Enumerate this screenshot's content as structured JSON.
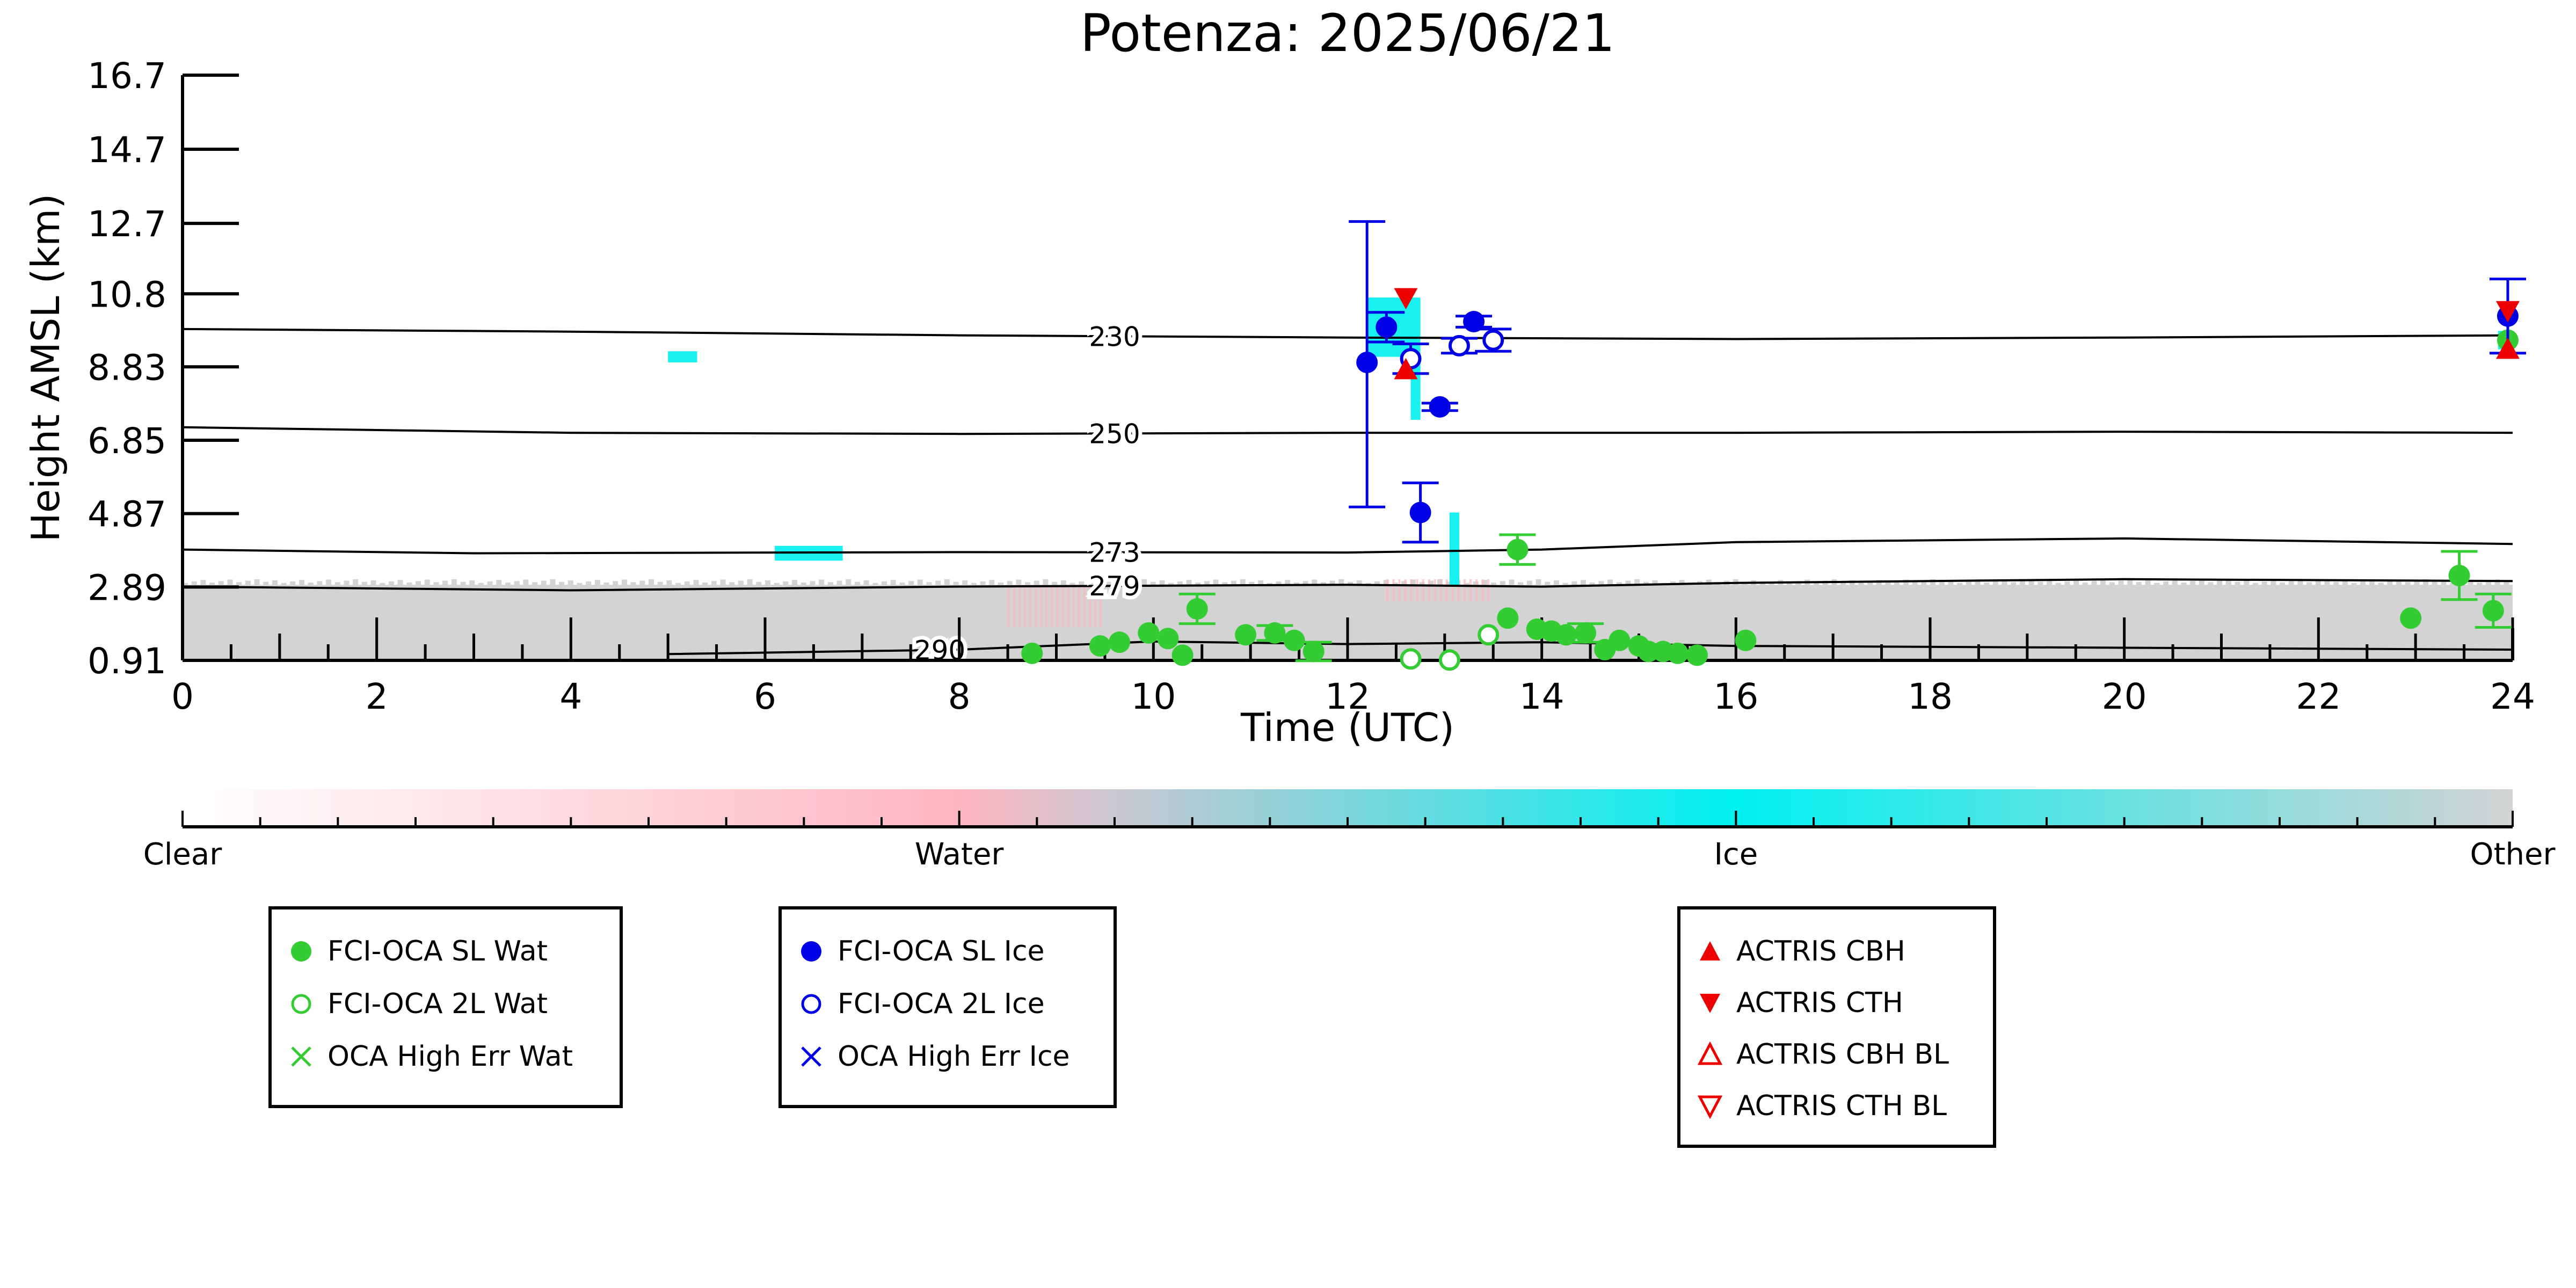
{
  "chart_data": {
    "type": "scatter",
    "title": "Potenza: 2025/06/21",
    "xlabel": "Time (UTC)",
    "ylabel": "Height AMSL (km)",
    "xlim": [
      0,
      24
    ],
    "ylim": [
      0.91,
      16.7
    ],
    "x_ticks": [
      "0",
      "2",
      "4",
      "6",
      "8",
      "10",
      "12",
      "14",
      "16",
      "18",
      "20",
      "22",
      "24"
    ],
    "y_ticks": [
      "0.91",
      "2.89",
      "4.87",
      "6.85",
      "8.83",
      "10.8",
      "12.7",
      "14.7",
      "16.7"
    ],
    "colors": {
      "water_point": "#33cc33",
      "ice_point": "#0000e6",
      "actris": "#ee0000",
      "cloud_ice": "#00f0f0",
      "cloud_water": "#ffb6c1",
      "cloud_other": "#d3d3d3"
    },
    "temperature_contours": [
      {
        "label": "230",
        "label_x": 9.6,
        "points": [
          [
            0,
            9.85
          ],
          [
            4,
            9.78
          ],
          [
            8,
            9.68
          ],
          [
            12,
            9.62
          ],
          [
            16,
            9.58
          ],
          [
            20,
            9.62
          ],
          [
            24,
            9.68
          ]
        ]
      },
      {
        "label": "250",
        "label_x": 9.6,
        "points": [
          [
            0,
            7.2
          ],
          [
            4,
            7.05
          ],
          [
            8,
            7.02
          ],
          [
            12,
            7.05
          ],
          [
            16,
            7.05
          ],
          [
            20,
            7.08
          ],
          [
            24,
            7.05
          ]
        ]
      },
      {
        "label": "273",
        "label_x": 9.6,
        "points": [
          [
            0,
            3.9
          ],
          [
            3,
            3.8
          ],
          [
            8,
            3.83
          ],
          [
            12,
            3.82
          ],
          [
            14,
            3.9
          ],
          [
            16,
            4.1
          ],
          [
            20,
            4.2
          ],
          [
            24,
            4.05
          ]
        ]
      },
      {
        "label": "279",
        "label_x": 9.6,
        "points": [
          [
            0,
            2.9
          ],
          [
            4,
            2.8
          ],
          [
            8,
            2.9
          ],
          [
            12,
            2.95
          ],
          [
            14,
            2.9
          ],
          [
            16,
            3.0
          ],
          [
            20,
            3.1
          ],
          [
            24,
            3.05
          ]
        ]
      },
      {
        "label": "290",
        "label_x": 7.8,
        "points": [
          [
            5.0,
            1.08
          ],
          [
            8,
            1.2
          ],
          [
            10,
            1.42
          ],
          [
            12,
            1.35
          ],
          [
            14,
            1.4
          ],
          [
            16,
            1.3
          ],
          [
            20,
            1.25
          ],
          [
            24,
            1.2
          ]
        ]
      }
    ],
    "series": [
      {
        "name": "FCI-OCA SL Wat",
        "marker": "filled-circle",
        "color": "#33cc33",
        "points": [
          {
            "x": 8.75,
            "y": 1.1
          },
          {
            "x": 9.45,
            "y": 1.3
          },
          {
            "x": 9.65,
            "y": 1.4
          },
          {
            "x": 9.95,
            "y": 1.65
          },
          {
            "x": 10.15,
            "y": 1.5
          },
          {
            "x": 10.3,
            "y": 1.05
          },
          {
            "x": 10.45,
            "y": 2.3,
            "err": 0.4
          },
          {
            "x": 10.95,
            "y": 1.6
          },
          {
            "x": 11.25,
            "y": 1.65,
            "err": 0.2
          },
          {
            "x": 11.45,
            "y": 1.45
          },
          {
            "x": 11.65,
            "y": 1.15,
            "err": 0.25
          },
          {
            "x": 13.65,
            "y": 2.05
          },
          {
            "x": 13.75,
            "y": 3.9,
            "err": 0.4
          },
          {
            "x": 13.95,
            "y": 1.75
          },
          {
            "x": 14.1,
            "y": 1.7
          },
          {
            "x": 14.25,
            "y": 1.6
          },
          {
            "x": 14.45,
            "y": 1.65,
            "err": 0.25
          },
          {
            "x": 14.65,
            "y": 1.2
          },
          {
            "x": 14.8,
            "y": 1.45
          },
          {
            "x": 15.0,
            "y": 1.3
          },
          {
            "x": 15.1,
            "y": 1.15
          },
          {
            "x": 15.25,
            "y": 1.15
          },
          {
            "x": 15.4,
            "y": 1.1
          },
          {
            "x": 15.6,
            "y": 1.05
          },
          {
            "x": 16.1,
            "y": 1.45
          },
          {
            "x": 22.95,
            "y": 2.05
          },
          {
            "x": 23.45,
            "y": 3.2,
            "err": 0.65
          },
          {
            "x": 23.8,
            "y": 2.25,
            "err": 0.45
          },
          {
            "x": 23.95,
            "y": 9.55
          }
        ]
      },
      {
        "name": "FCI-OCA 2L Wat",
        "marker": "open-circle",
        "color": "#33cc33",
        "points": [
          {
            "x": 12.65,
            "y": 0.95
          },
          {
            "x": 13.05,
            "y": 0.92
          },
          {
            "x": 13.45,
            "y": 1.6
          }
        ]
      },
      {
        "name": "OCA High Err Wat",
        "marker": "x",
        "color": "#33cc33",
        "points": []
      },
      {
        "name": "FCI-OCA SL Ice",
        "marker": "filled-circle",
        "color": "#0000e6",
        "points": [
          {
            "x": 12.2,
            "y": 8.95,
            "err_low": 3.9,
            "err_high": 3.8
          },
          {
            "x": 12.4,
            "y": 9.9,
            "err": 0.4
          },
          {
            "x": 12.75,
            "y": 4.9,
            "err": 0.8
          },
          {
            "x": 12.95,
            "y": 7.75,
            "err": 0.1
          },
          {
            "x": 13.3,
            "y": 10.05,
            "err": 0.15
          },
          {
            "x": 23.95,
            "y": 10.2,
            "err": 1.0
          }
        ]
      },
      {
        "name": "FCI-OCA 2L Ice",
        "marker": "open-circle",
        "color": "#0000e6",
        "points": [
          {
            "x": 12.65,
            "y": 9.05,
            "err": 0.4
          },
          {
            "x": 13.15,
            "y": 9.4,
            "err": 0.2
          },
          {
            "x": 13.5,
            "y": 9.55,
            "err": 0.3
          }
        ]
      },
      {
        "name": "OCA High Err Ice",
        "marker": "x",
        "color": "#0000e6",
        "points": []
      },
      {
        "name": "ACTRIS CBH",
        "marker": "filled-triangle-up",
        "color": "#ee0000",
        "points": [
          {
            "x": 12.6,
            "y": 8.75
          },
          {
            "x": 23.95,
            "y": 9.3
          }
        ]
      },
      {
        "name": "ACTRIS CTH",
        "marker": "filled-triangle-down",
        "color": "#ee0000",
        "points": [
          {
            "x": 12.6,
            "y": 10.7
          },
          {
            "x": 23.95,
            "y": 10.35
          }
        ]
      },
      {
        "name": "ACTRIS CBH BL",
        "marker": "open-triangle-up",
        "color": "#ee0000",
        "points": []
      },
      {
        "name": "ACTRIS CTH BL",
        "marker": "open-triangle-down",
        "color": "#ee0000",
        "points": []
      }
    ],
    "cloud_mask": {
      "other_layer": {
        "x_range": [
          0,
          24
        ],
        "y_range": [
          0.91,
          2.95
        ]
      },
      "ice_regions": [
        {
          "x": [
            5.0,
            5.3
          ],
          "y": [
            8.95,
            9.25
          ]
        },
        {
          "x": [
            6.1,
            6.8
          ],
          "y": [
            3.6,
            4.0
          ]
        },
        {
          "x": [
            12.2,
            12.75
          ],
          "y": [
            9.1,
            10.7
          ]
        },
        {
          "x": [
            12.65,
            12.75
          ],
          "y": [
            7.4,
            9.1
          ]
        },
        {
          "x": [
            13.05,
            13.15
          ],
          "y": [
            2.9,
            4.9
          ]
        },
        {
          "x": [
            23.85,
            24.0
          ],
          "y": [
            9.3,
            9.8
          ]
        }
      ],
      "water_regions": [
        {
          "x": [
            8.5,
            9.5
          ],
          "y": [
            1.8,
            2.9
          ]
        },
        {
          "x": [
            12.4,
            13.5
          ],
          "y": [
            2.5,
            3.1
          ]
        }
      ]
    },
    "colorbar": {
      "labels": [
        "Clear",
        "Water",
        "Ice",
        "Other"
      ],
      "stops": [
        {
          "pos": 0.0,
          "color": "#ffffff"
        },
        {
          "pos": 0.333,
          "color": "#ffb6c1"
        },
        {
          "pos": 0.4,
          "color": "#c9c7d0"
        },
        {
          "pos": 0.666,
          "color": "#00f0f0"
        },
        {
          "pos": 1.0,
          "color": "#d3d3d3"
        }
      ]
    },
    "legend_groups": [
      [
        "FCI-OCA SL Wat",
        "FCI-OCA 2L Wat",
        "OCA High Err Wat"
      ],
      [
        "FCI-OCA SL Ice",
        "FCI-OCA 2L Ice",
        "OCA High Err Ice"
      ],
      [
        "ACTRIS CBH",
        "ACTRIS CTH",
        "ACTRIS CBH BL",
        "ACTRIS CTH BL"
      ]
    ]
  }
}
